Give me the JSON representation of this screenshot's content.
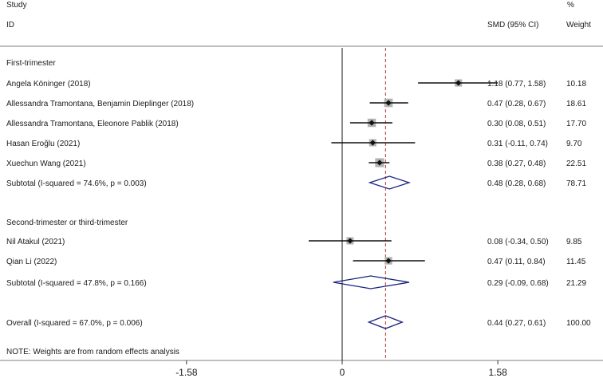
{
  "chart_data": {
    "type": "forest",
    "header": {
      "study_top": "Study",
      "study_id": "ID",
      "effect": "SMD (95% CI)",
      "weight_top": "%",
      "weight": "Weight"
    },
    "x_ticks": [
      {
        "value": -1.58,
        "label": "-1.58"
      },
      {
        "value": 0,
        "label": "0"
      },
      {
        "value": 1.58,
        "label": "1.58"
      }
    ],
    "xlim": [
      -2.31,
      2.31
    ],
    "overall_effect": 0.44,
    "groups": [
      {
        "title": "First-trimester",
        "studies": [
          {
            "label": "Angela Köninger (2018)",
            "est": 1.18,
            "lo": 0.77,
            "hi": 1.58,
            "ci_text": "1.18 (0.77, 1.58)",
            "weight": 10.18,
            "weight_text": "10.18"
          },
          {
            "label": "Allessandra Tramontana, Benjamin Dieplinger (2018)",
            "est": 0.47,
            "lo": 0.28,
            "hi": 0.67,
            "ci_text": "0.47 (0.28, 0.67)",
            "weight": 18.61,
            "weight_text": "18.61"
          },
          {
            "label": "Allessandra Tramontana, Eleonore Pablik (2018)",
            "est": 0.3,
            "lo": 0.08,
            "hi": 0.51,
            "ci_text": "0.30 (0.08, 0.51)",
            "weight": 17.7,
            "weight_text": "17.70"
          },
          {
            "label": "Hasan Eroğlu (2021)",
            "est": 0.31,
            "lo": -0.11,
            "hi": 0.74,
            "ci_text": "0.31 (-0.11, 0.74)",
            "weight": 9.7,
            "weight_text": "9.70"
          },
          {
            "label": "Xuechun Wang  (2021)",
            "est": 0.38,
            "lo": 0.27,
            "hi": 0.48,
            "ci_text": "0.38 (0.27, 0.48)",
            "weight": 22.51,
            "weight_text": "22.51"
          }
        ],
        "subtotal": {
          "label": "Subtotal  (I-squared = 74.6%, p = 0.003)",
          "est": 0.48,
          "lo": 0.28,
          "hi": 0.68,
          "ci_text": "0.48 (0.28, 0.68)",
          "weight_text": "78.71"
        }
      },
      {
        "title": "Second-trimester or third-trimester",
        "studies": [
          {
            "label": "Nil Atakul (2021)",
            "est": 0.08,
            "lo": -0.34,
            "hi": 0.5,
            "ci_text": "0.08 (-0.34, 0.50)",
            "weight": 9.85,
            "weight_text": "9.85"
          },
          {
            "label": "Qian Li  (2022)",
            "est": 0.47,
            "lo": 0.11,
            "hi": 0.84,
            "ci_text": "0.47 (0.11, 0.84)",
            "weight": 11.45,
            "weight_text": "11.45"
          }
        ],
        "subtotal": {
          "label": "Subtotal  (I-squared = 47.8%, p = 0.166)",
          "est": 0.29,
          "lo": -0.09,
          "hi": 0.68,
          "ci_text": "0.29 (-0.09, 0.68)",
          "weight_text": "21.29"
        }
      }
    ],
    "overall": {
      "label": "Overall  (I-squared = 67.0%, p = 0.006)",
      "est": 0.44,
      "lo": 0.27,
      "hi": 0.61,
      "ci_text": "0.44 (0.27, 0.61)",
      "weight_text": "100.00"
    },
    "note": "NOTE: Weights are from random effects analysis",
    "colors": {
      "diamond": "#1a237e",
      "ref_line": "#b03a2e",
      "weight_box": "#b3b3b3",
      "line": "#111111"
    }
  }
}
